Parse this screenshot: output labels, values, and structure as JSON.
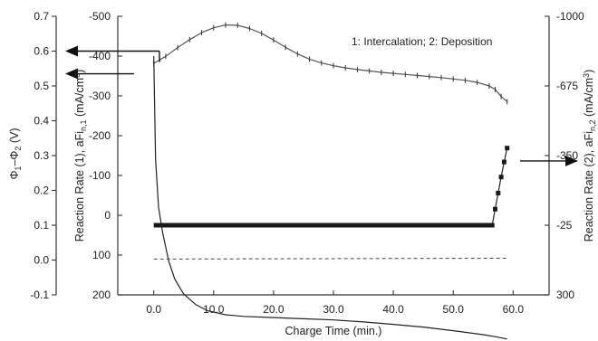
{
  "chart_data": {
    "type": "line",
    "xlabel": "Charge Time (min.)",
    "annotation": "1: Intercalation; 2: Deposition",
    "x_axis": {
      "range": [
        -6,
        66
      ],
      "ticks": [
        0,
        10,
        20,
        30,
        40,
        50,
        60
      ],
      "tick_labels": [
        "0.0",
        "10.0",
        "20.0",
        "30.0",
        "40.0",
        "50.0",
        "60.0"
      ]
    },
    "axes": {
      "potential": {
        "label": "Φ1–Φ2 (V)",
        "range": [
          -0.1,
          0.7
        ],
        "ticks": [
          -0.1,
          0.0,
          0.1,
          0.2,
          0.3,
          0.4,
          0.5,
          0.6,
          0.7
        ],
        "tick_labels": [
          "-0.1",
          "0.0",
          "0.1",
          "0.2",
          "0.3",
          "0.4",
          "0.5",
          "0.6",
          "0.7"
        ]
      },
      "rate1": {
        "label": "Reaction Rate (1), aFi_n,1 (mA/cm³)",
        "range": [
          200,
          -500
        ],
        "ticks": [
          -500,
          -400,
          -300,
          -200,
          -100,
          0,
          100,
          200
        ],
        "tick_labels": [
          "-500",
          "-400",
          "-300",
          "-200",
          "-100",
          "0",
          "100",
          "200"
        ]
      },
      "rate2": {
        "label": "Reaction Rate (2), aFi_n,2 (mA/cm³)",
        "range": [
          300,
          -1000
        ],
        "ticks": [
          -1000,
          -675,
          -350,
          -25,
          300
        ],
        "tick_labels": [
          "-1000",
          "-675",
          "-350",
          "-25",
          "300"
        ]
      }
    },
    "series": [
      {
        "axis": "potential",
        "style": "solid-markers",
        "x": [
          0,
          2,
          4,
          6,
          8,
          10,
          12,
          14,
          16,
          18,
          20,
          22,
          24,
          26,
          28,
          30,
          32,
          34,
          36,
          38,
          40,
          42,
          44,
          46,
          48,
          50,
          52,
          54,
          56,
          57,
          58,
          59
        ],
        "y": [
          0.565,
          0.585,
          0.61,
          0.633,
          0.653,
          0.667,
          0.675,
          0.674,
          0.665,
          0.651,
          0.632,
          0.611,
          0.592,
          0.577,
          0.566,
          0.558,
          0.552,
          0.547,
          0.543,
          0.539,
          0.536,
          0.533,
          0.53,
          0.527,
          0.524,
          0.52,
          0.516,
          0.51,
          0.5,
          0.49,
          0.47,
          0.455
        ]
      },
      {
        "axis": "rate1",
        "style": "solid",
        "x": [
          0,
          0.3,
          0.8,
          1.5,
          2.5,
          3.5,
          5,
          7,
          9,
          12,
          15,
          20,
          25,
          30,
          35,
          40,
          45,
          50,
          55,
          57,
          59
        ],
        "y": [
          -400,
          -140,
          -20,
          45,
          115,
          160,
          198,
          224,
          240,
          250,
          254,
          257,
          260,
          263,
          268,
          274,
          281,
          290,
          300,
          305,
          311
        ]
      },
      {
        "axis": "rate1",
        "style": "dashed",
        "x": [
          0,
          59
        ],
        "y": [
          110,
          108
        ]
      },
      {
        "axis": "rate2",
        "style": "thick",
        "x": [
          0,
          56.5
        ],
        "y": [
          -25,
          -25
        ]
      },
      {
        "axis": "rate2",
        "style": "solid-squares",
        "x": [
          56.5,
          57,
          57.5,
          58,
          58.5,
          59
        ],
        "y": [
          -25,
          -100,
          -175,
          -250,
          -320,
          -385
        ]
      }
    ],
    "arrows": [
      {
        "points_to": "potential",
        "y_value": 0.6
      },
      {
        "points_to": "potential",
        "y_value": 0.535
      },
      {
        "points_to": "rate2",
        "y_value": -325
      }
    ],
    "grid": false
  }
}
